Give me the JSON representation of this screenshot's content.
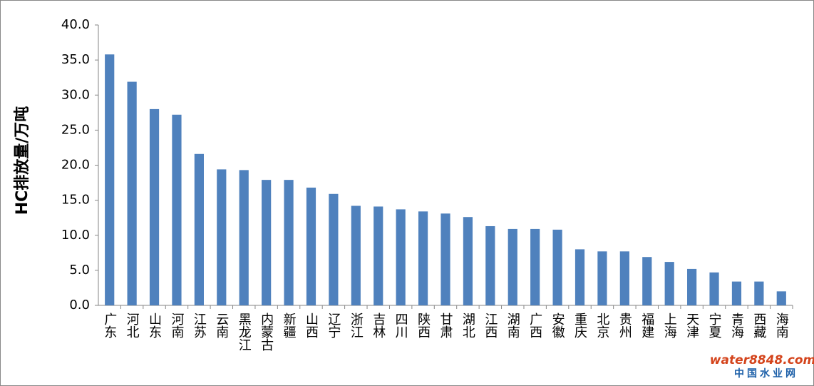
{
  "chart_data": {
    "type": "bar",
    "y_label": "HC排放量/万吨",
    "categories": [
      "广东",
      "河北",
      "山东",
      "河南",
      "江苏",
      "云南",
      "黑龙江",
      "内蒙古",
      "新疆",
      "山西",
      "辽宁",
      "浙江",
      "吉林",
      "四川",
      "陕西",
      "甘肃",
      "湖北",
      "江西",
      "湖南",
      "广西",
      "安徽",
      "重庆",
      "北京",
      "贵州",
      "福建",
      "上海",
      "天津",
      "宁夏",
      "青海",
      "西藏",
      "海南"
    ],
    "values": [
      35.8,
      31.9,
      28.0,
      27.2,
      21.6,
      19.4,
      19.3,
      17.9,
      17.9,
      16.8,
      15.9,
      14.2,
      14.1,
      13.7,
      13.4,
      13.1,
      12.6,
      11.3,
      10.9,
      10.9,
      10.8,
      8.0,
      7.7,
      7.7,
      6.9,
      6.2,
      5.2,
      4.7,
      3.4,
      3.4,
      2.0
    ],
    "color": "#4f81bd",
    "ylim": [
      0,
      40
    ],
    "yticks": [
      {
        "value": 0,
        "label": "0.0"
      },
      {
        "value": 5,
        "label": "5.0"
      },
      {
        "value": 10,
        "label": "10.0"
      },
      {
        "value": 15,
        "label": "15.0"
      },
      {
        "value": 20,
        "label": "20.0"
      },
      {
        "value": 25,
        "label": "25.0"
      },
      {
        "value": 30,
        "label": "30.0"
      },
      {
        "value": 35,
        "label": "35.0"
      },
      {
        "value": 40,
        "label": "40.0"
      }
    ],
    "grid": false
  },
  "watermark": {
    "brand": "water8848.com",
    "name": "中国水业网"
  }
}
